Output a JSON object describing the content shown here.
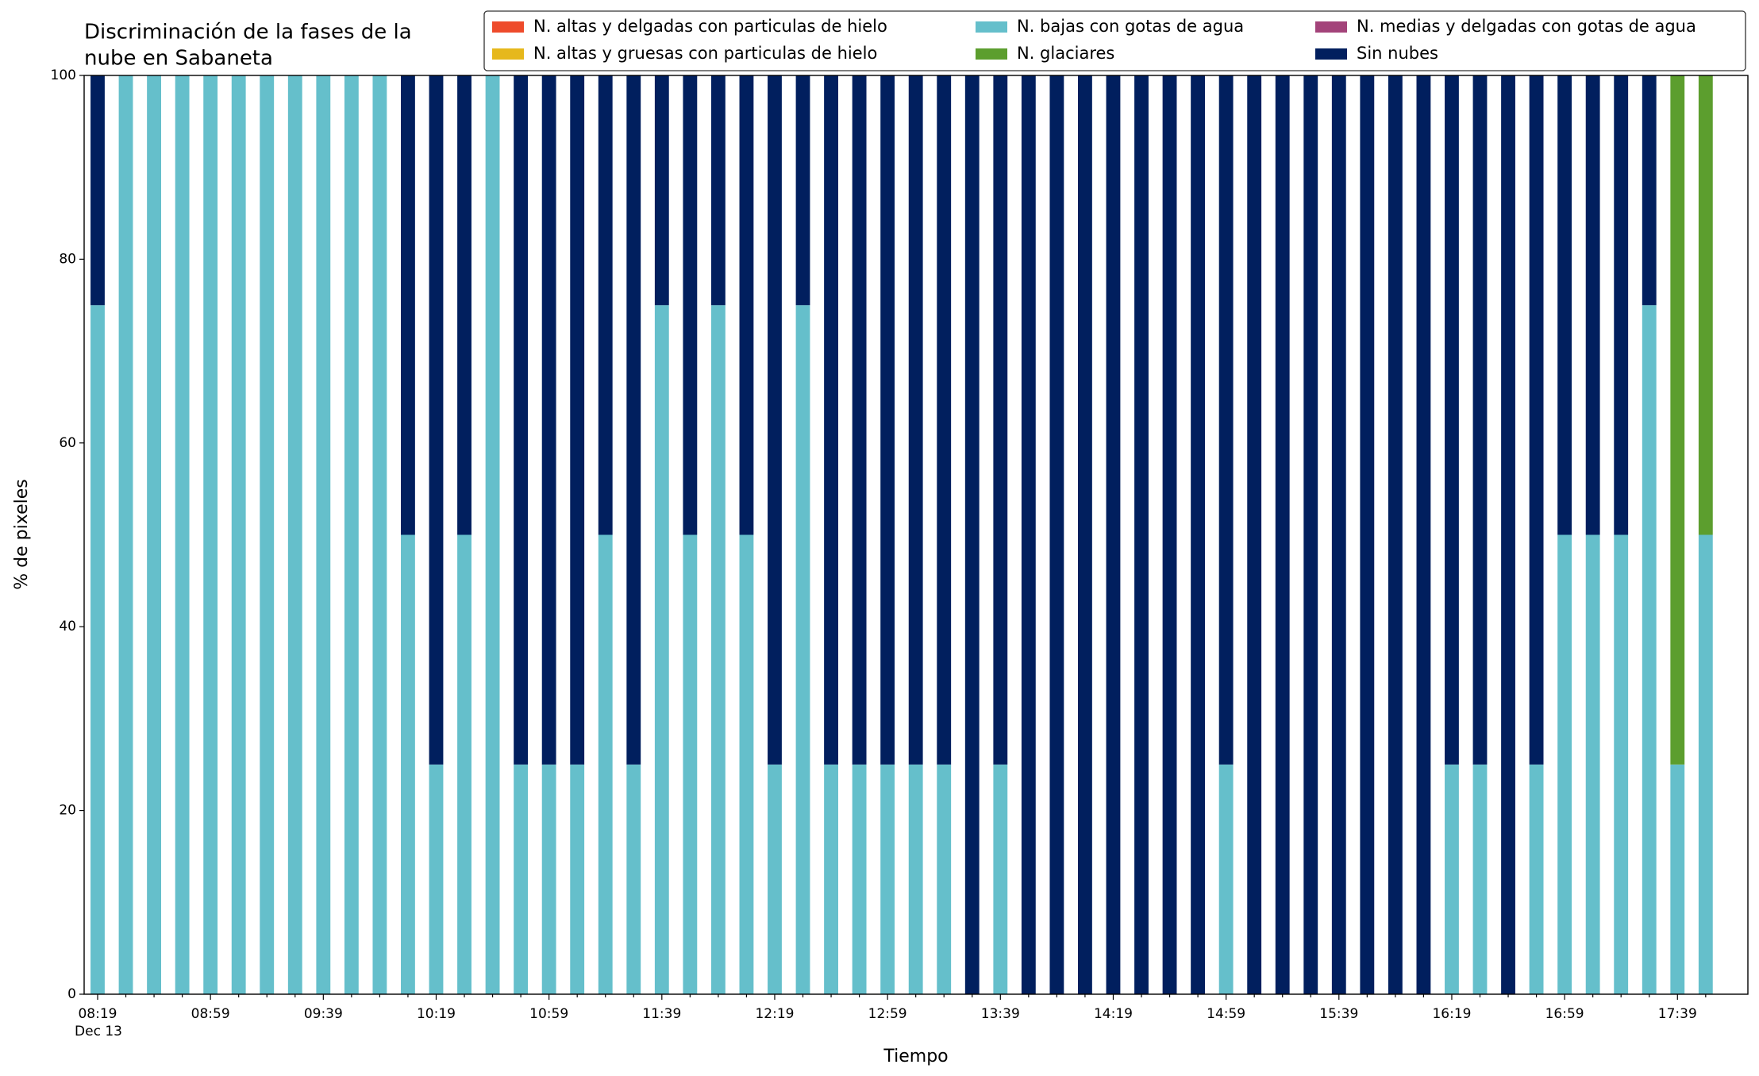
{
  "chart_data": {
    "type": "stacked_bar",
    "title_lines": [
      "Discriminación de la fases de la",
      "nube en Sabaneta"
    ],
    "x_label": "Tiempo",
    "x_sublabel": "Dec 13",
    "y_label": "% de pixeles",
    "categories": [
      "08:19",
      null,
      null,
      null,
      "08:59",
      null,
      null,
      null,
      "09:39",
      null,
      null,
      null,
      "10:19",
      null,
      null,
      null,
      "10:59",
      null,
      null,
      null,
      "11:39",
      null,
      null,
      null,
      "12:19",
      null,
      null,
      null,
      "12:59",
      null,
      null,
      null,
      "13:39",
      null,
      null,
      null,
      "14:19",
      null,
      null,
      null,
      "14:59",
      null,
      null,
      null,
      "15:39",
      null,
      null,
      null,
      "16:19",
      null,
      null,
      null,
      "16:59",
      null,
      null,
      null,
      "17:39",
      null
    ],
    "ylim": [
      0,
      100
    ],
    "yticks": [
      0,
      20,
      40,
      60,
      80,
      100
    ],
    "legend": "top-right",
    "series": [
      {
        "name": "N. altas y delgadas con particulas de hielo",
        "color": "#ee4b2b",
        "values": [
          0,
          0,
          0,
          0,
          0,
          0,
          0,
          0,
          0,
          0,
          0,
          0,
          0,
          0,
          0,
          0,
          0,
          0,
          0,
          0,
          0,
          0,
          0,
          0,
          0,
          0,
          0,
          0,
          0,
          0,
          0,
          0,
          0,
          0,
          0,
          0,
          0,
          0,
          0,
          0,
          0,
          0,
          0,
          0,
          0,
          0,
          0,
          0,
          0,
          0,
          0,
          0,
          0,
          0,
          0,
          0,
          0,
          0
        ]
      },
      {
        "name": "N. altas y gruesas con particulas de hielo",
        "color": "#e6b81c",
        "values": [
          0,
          0,
          0,
          0,
          0,
          0,
          0,
          0,
          0,
          0,
          0,
          0,
          0,
          0,
          0,
          0,
          0,
          0,
          0,
          0,
          0,
          0,
          0,
          0,
          0,
          0,
          0,
          0,
          0,
          0,
          0,
          0,
          0,
          0,
          0,
          0,
          0,
          0,
          0,
          0,
          0,
          0,
          0,
          0,
          0,
          0,
          0,
          0,
          0,
          0,
          0,
          0,
          0,
          0,
          0,
          0,
          0,
          0
        ]
      },
      {
        "name": "N. bajas con gotas de agua",
        "color": "#65bfcb",
        "values": [
          75,
          100,
          100,
          100,
          100,
          100,
          100,
          100,
          100,
          100,
          100,
          50,
          25,
          50,
          100,
          25,
          25,
          25,
          50,
          25,
          75,
          50,
          75,
          50,
          25,
          75,
          25,
          25,
          25,
          25,
          25,
          0,
          25,
          0,
          0,
          0,
          0,
          0,
          0,
          0,
          25,
          0,
          0,
          0,
          0,
          0,
          0,
          0,
          25,
          25,
          0,
          25,
          50,
          50,
          50,
          75,
          25,
          50
        ]
      },
      {
        "name": "N. glaciares",
        "color": "#5c9e2e",
        "values": [
          0,
          0,
          0,
          0,
          0,
          0,
          0,
          0,
          0,
          0,
          0,
          0,
          0,
          0,
          0,
          0,
          0,
          0,
          0,
          0,
          0,
          0,
          0,
          0,
          0,
          0,
          0,
          0,
          0,
          0,
          0,
          0,
          0,
          0,
          0,
          0,
          0,
          0,
          0,
          0,
          0,
          0,
          0,
          0,
          0,
          0,
          0,
          0,
          0,
          0,
          0,
          0,
          0,
          0,
          0,
          0,
          75,
          50
        ]
      },
      {
        "name": "N. medias y delgadas con gotas de agua",
        "color": "#a3437a",
        "values": [
          0,
          0,
          0,
          0,
          0,
          0,
          0,
          0,
          0,
          0,
          0,
          0,
          0,
          0,
          0,
          0,
          0,
          0,
          0,
          0,
          0,
          0,
          0,
          0,
          0,
          0,
          0,
          0,
          0,
          0,
          0,
          0,
          0,
          0,
          0,
          0,
          0,
          0,
          0,
          0,
          0,
          0,
          0,
          0,
          0,
          0,
          0,
          0,
          0,
          0,
          0,
          0,
          0,
          0,
          0,
          0,
          0,
          0
        ]
      },
      {
        "name": "Sin nubes",
        "color": "#011f5e",
        "values": [
          25,
          0,
          0,
          0,
          0,
          0,
          0,
          0,
          0,
          0,
          0,
          50,
          75,
          50,
          0,
          75,
          75,
          75,
          50,
          75,
          25,
          50,
          25,
          50,
          75,
          25,
          75,
          75,
          75,
          75,
          75,
          100,
          75,
          100,
          100,
          100,
          100,
          100,
          100,
          100,
          75,
          100,
          100,
          100,
          100,
          100,
          100,
          100,
          75,
          75,
          100,
          75,
          50,
          50,
          50,
          25,
          0,
          0
        ]
      }
    ]
  }
}
